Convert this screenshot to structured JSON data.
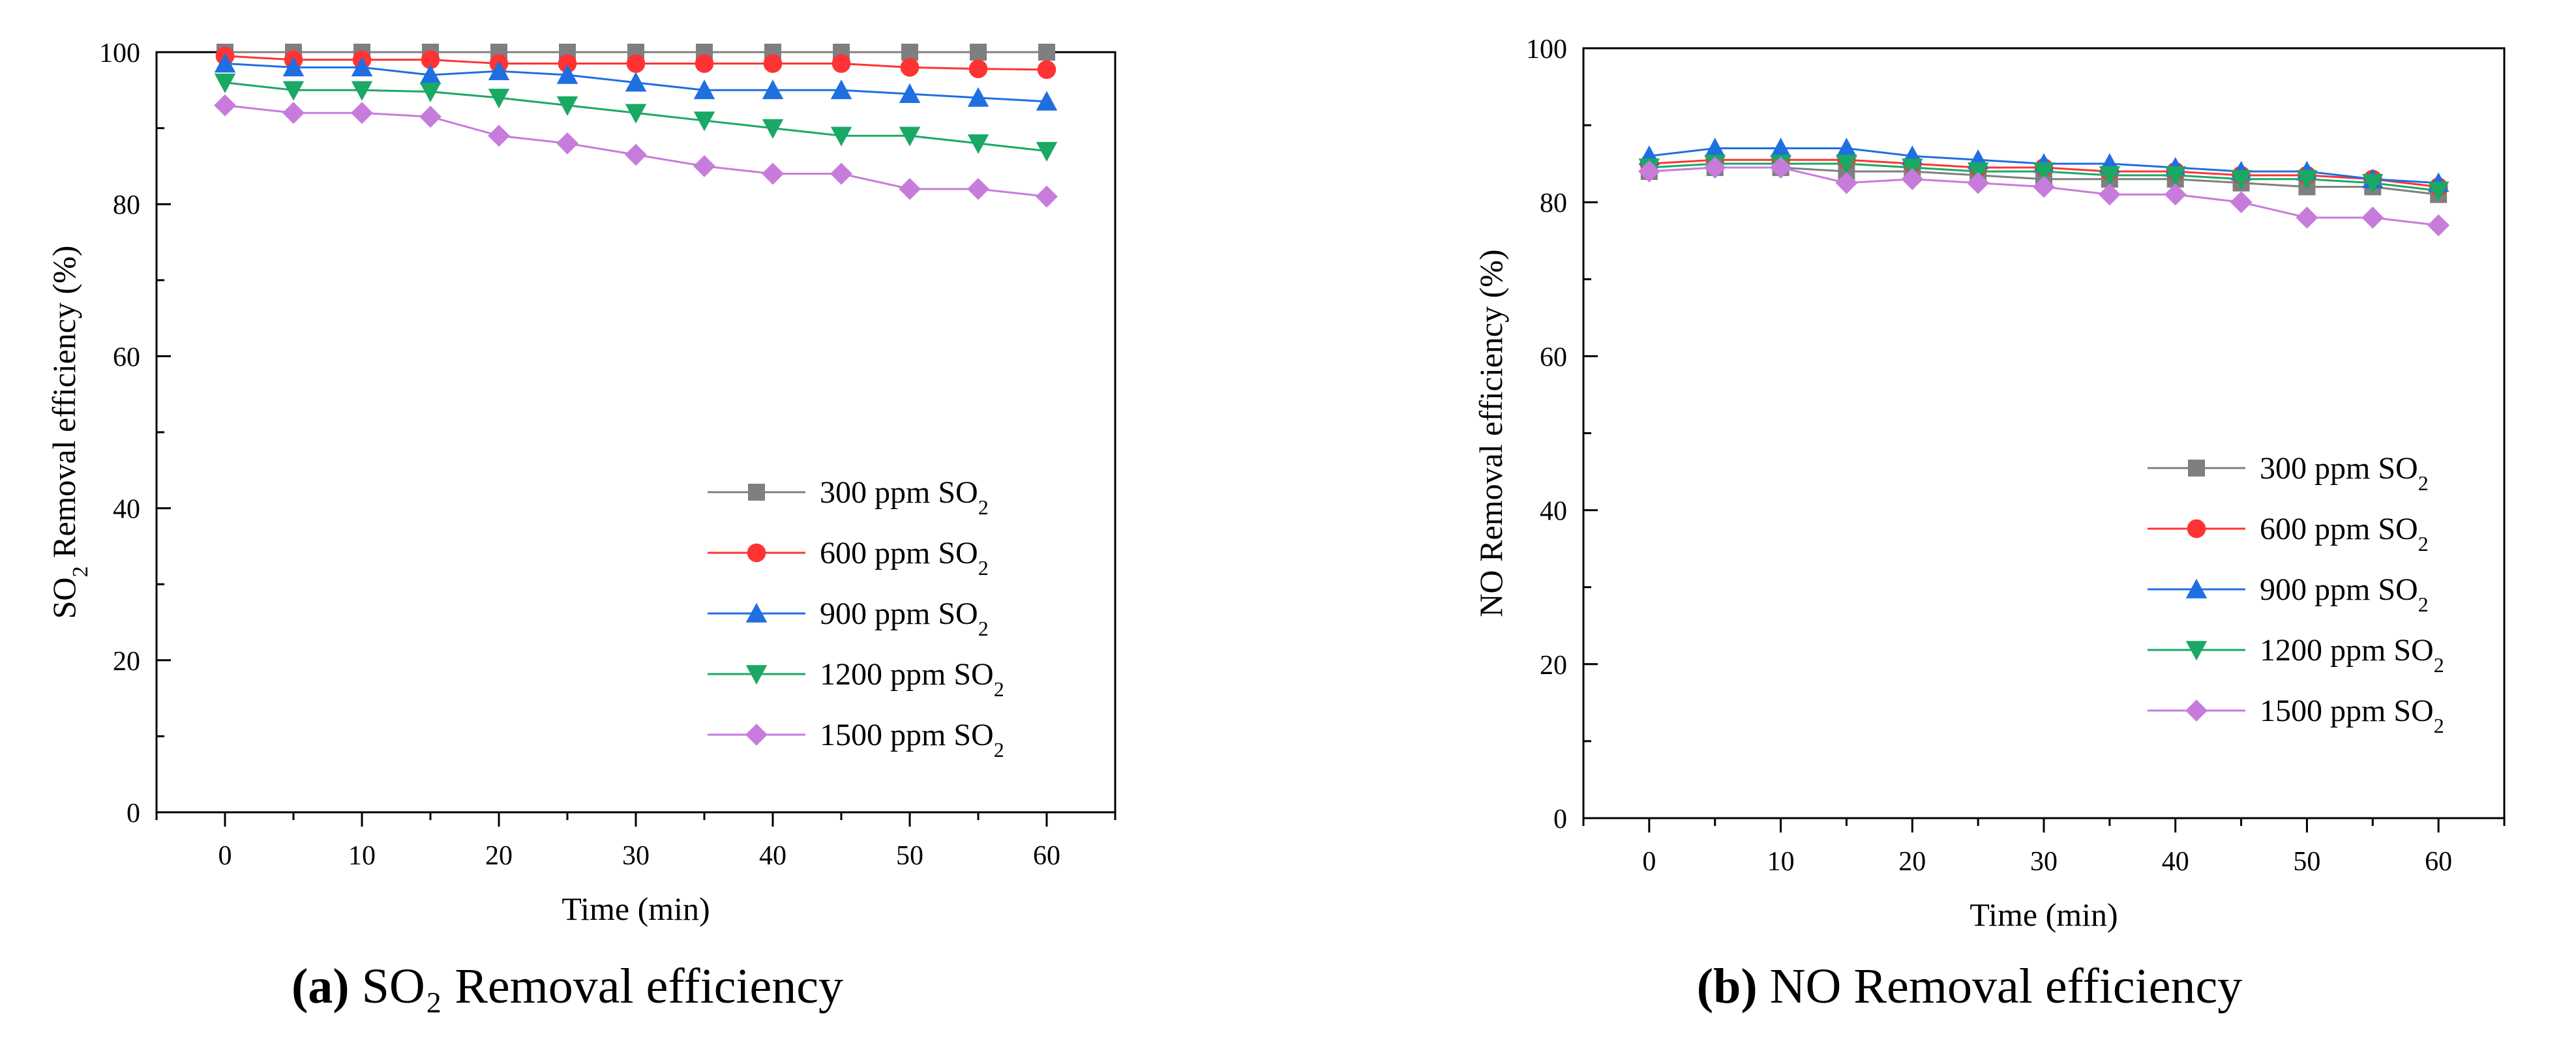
{
  "chart_data": [
    {
      "type": "line",
      "id": "a",
      "title": "",
      "xlabel": "Time (min)",
      "ylabel": "SO₂ Removal efficiency (%)",
      "x": [
        0,
        5,
        10,
        15,
        20,
        25,
        30,
        35,
        40,
        45,
        50,
        55,
        60
      ],
      "xticks": [
        0,
        10,
        20,
        30,
        40,
        50,
        60
      ],
      "yticks": [
        0,
        20,
        40,
        60,
        80,
        100
      ],
      "xlim": [
        -5,
        65
      ],
      "ylim": [
        0,
        100
      ],
      "legend_position": "right-center",
      "series": [
        {
          "name": "300 ppm SO₂",
          "marker": "square",
          "color": "#7f7f7f",
          "values": [
            100,
            100,
            100,
            100,
            100,
            100,
            100,
            100,
            100,
            100,
            100,
            100,
            100
          ]
        },
        {
          "name": "600 ppm SO₂",
          "marker": "circle",
          "color": "#ff3333",
          "values": [
            99.5,
            99,
            99,
            99,
            98.5,
            98.5,
            98.5,
            98.5,
            98.5,
            98.5,
            98,
            97.8,
            97.7
          ]
        },
        {
          "name": "900 ppm SO₂",
          "marker": "triangle-up",
          "color": "#1f6fe0",
          "values": [
            98.5,
            98,
            98,
            97,
            97.5,
            97,
            96,
            95,
            95,
            95,
            94.5,
            94,
            93.5
          ]
        },
        {
          "name": "1200 ppm SO₂",
          "marker": "triangle-down",
          "color": "#1aa865",
          "values": [
            96,
            95,
            95,
            94.8,
            94,
            93,
            92,
            91,
            90,
            89,
            89,
            88,
            87
          ]
        },
        {
          "name": "1500 ppm SO₂",
          "marker": "diamond",
          "color": "#c77cdb",
          "values": [
            93,
            92,
            92,
            91.5,
            89,
            88,
            86.5,
            85,
            84,
            84,
            82,
            82,
            81
          ]
        }
      ]
    },
    {
      "type": "line",
      "id": "b",
      "title": "",
      "xlabel": "Time (min)",
      "ylabel": "NO Removal efficiency (%)",
      "x": [
        0,
        5,
        10,
        15,
        20,
        25,
        30,
        35,
        40,
        45,
        50,
        55,
        60
      ],
      "xticks": [
        0,
        10,
        20,
        30,
        40,
        50,
        60
      ],
      "yticks": [
        0,
        20,
        40,
        60,
        80,
        100
      ],
      "xlim": [
        -5,
        65
      ],
      "ylim": [
        0,
        100
      ],
      "legend_position": "right-center",
      "series": [
        {
          "name": "300 ppm SO₂",
          "marker": "square",
          "color": "#7f7f7f",
          "values": [
            84,
            84.5,
            84.5,
            84,
            84,
            83.5,
            83,
            83,
            83,
            82.5,
            82,
            82,
            81
          ]
        },
        {
          "name": "600 ppm SO₂",
          "marker": "circle",
          "color": "#ff3333",
          "values": [
            85,
            85.5,
            85.5,
            85.5,
            85,
            84.5,
            84.5,
            84,
            84,
            83.5,
            83.5,
            83,
            82
          ]
        },
        {
          "name": "900 ppm SO₂",
          "marker": "triangle-up",
          "color": "#1f6fe0",
          "values": [
            86,
            87,
            87,
            87,
            86,
            85.5,
            85,
            85,
            84.5,
            84,
            84,
            83,
            82.5
          ]
        },
        {
          "name": "1200 ppm SO₂",
          "marker": "triangle-down",
          "color": "#1aa865",
          "values": [
            84.5,
            85,
            85,
            85,
            84.5,
            84,
            84,
            83.5,
            83.5,
            83,
            83,
            82.5,
            81.5
          ]
        },
        {
          "name": "1500 ppm SO₂",
          "marker": "diamond",
          "color": "#c77cdb",
          "values": [
            84,
            84.5,
            84.5,
            82.5,
            83,
            82.5,
            82,
            81,
            81,
            80,
            78,
            78,
            77
          ]
        }
      ]
    }
  ],
  "captions": [
    {
      "letter": "(a)",
      "text": " SO₂ Removal efficiency"
    },
    {
      "letter": "(b)",
      "text": " NO Removal efficiency"
    }
  ]
}
